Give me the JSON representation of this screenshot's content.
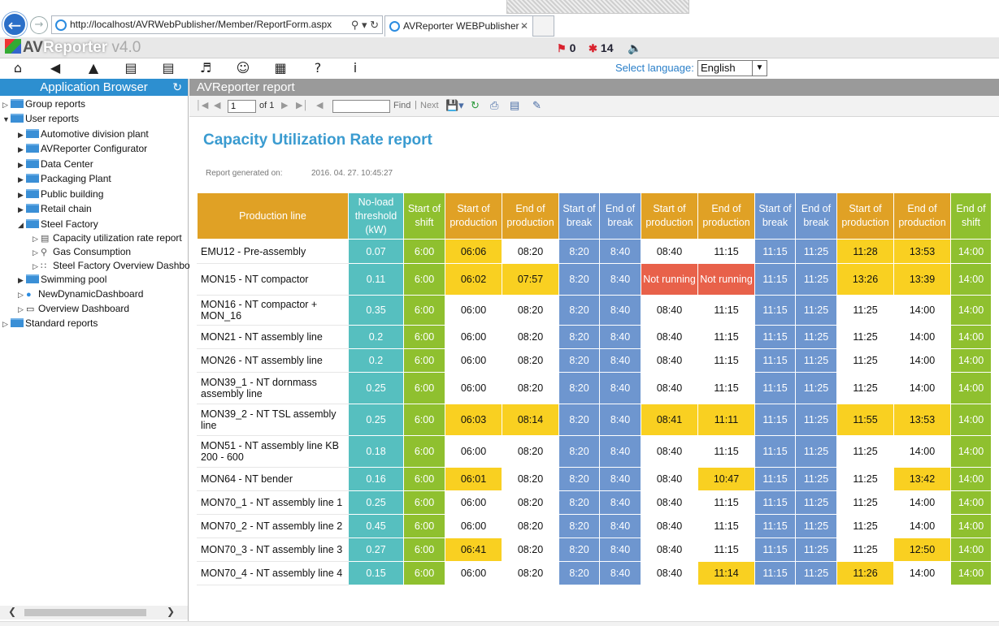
{
  "browser": {
    "url": "http://localhost/AVRWebPublisher/Member/ReportForm.aspx",
    "tab_title": "AVReporter WEBPublisher - ..."
  },
  "app": {
    "logo_av": "AV",
    "logo_reporter": "Reporter",
    "logo_version": "v4.0",
    "alerts": {
      "count1": "0",
      "count2": "14"
    },
    "language_label": "Select language:",
    "language_value": "English"
  },
  "left_panel": {
    "title": "Application Browser",
    "tree": [
      {
        "label": "Group reports"
      },
      {
        "label": "User reports"
      },
      {
        "label": "Automotive division plant"
      },
      {
        "label": "AVReporter Configurator"
      },
      {
        "label": "Data Center"
      },
      {
        "label": "Packaging Plant"
      },
      {
        "label": "Public building"
      },
      {
        "label": "Retail chain"
      },
      {
        "label": "Steel Factory"
      },
      {
        "label": "Capacity utilization rate report"
      },
      {
        "label": "Gas Consumption"
      },
      {
        "label": "Steel Factory Overview Dashboard"
      },
      {
        "label": "Swimming pool"
      },
      {
        "label": "NewDynamicDashboard"
      },
      {
        "label": "Overview Dashboard"
      },
      {
        "label": "Standard reports"
      }
    ]
  },
  "report_panel": {
    "header": "AVReporter report",
    "page_value": "1",
    "of_label": "of 1",
    "find_label": "Find",
    "next_label": "Next",
    "title": "Capacity Utilization Rate report",
    "generated_label": "Report generated on:",
    "generated_value": "2016. 04. 27. 10:45:27"
  },
  "table": {
    "headers": [
      "Production line",
      "No-load threshold (kW)",
      "Start of shift",
      "Start of production",
      "End of production",
      "Start of break",
      "End of break",
      "Start of production",
      "End of production",
      "Start of break",
      "End of break",
      "Start of production",
      "End of production",
      "End of shift"
    ],
    "header_colors": [
      "or",
      "teal",
      "green",
      "or",
      "or",
      "blue",
      "blue",
      "or",
      "or",
      "blue",
      "blue",
      "or",
      "or",
      "green"
    ],
    "rows": [
      {
        "cells": [
          "EMU12 - Pre-assembly",
          "0.07",
          "6:00",
          "06:06",
          "08:20",
          "8:20",
          "8:40",
          "08:40",
          "11:15",
          "11:15",
          "11:25",
          "11:28",
          "13:53",
          "14:00"
        ],
        "colors": [
          "white",
          "teal",
          "green",
          "yel",
          "white",
          "blue",
          "blue",
          "white",
          "white",
          "blue",
          "blue",
          "yel",
          "yel",
          "green"
        ]
      },
      {
        "cells": [
          "MON15 - NT compactor",
          "0.11",
          "6:00",
          "06:02",
          "07:57",
          "8:20",
          "8:40",
          "Not running",
          "Not running",
          "11:15",
          "11:25",
          "13:26",
          "13:39",
          "14:00"
        ],
        "colors": [
          "white",
          "teal",
          "green",
          "yel",
          "yel",
          "blue",
          "blue",
          "red",
          "red",
          "blue",
          "blue",
          "yel",
          "yel",
          "green"
        ]
      },
      {
        "cells": [
          "MON16 - NT compactor + MON_16",
          "0.35",
          "6:00",
          "06:00",
          "08:20",
          "8:20",
          "8:40",
          "08:40",
          "11:15",
          "11:15",
          "11:25",
          "11:25",
          "14:00",
          "14:00"
        ],
        "colors": [
          "white",
          "teal",
          "green",
          "white",
          "white",
          "blue",
          "blue",
          "white",
          "white",
          "blue",
          "blue",
          "white",
          "white",
          "green"
        ]
      },
      {
        "cells": [
          "MON21 - NT assembly line",
          "0.2",
          "6:00",
          "06:00",
          "08:20",
          "8:20",
          "8:40",
          "08:40",
          "11:15",
          "11:15",
          "11:25",
          "11:25",
          "14:00",
          "14:00"
        ],
        "colors": [
          "white",
          "teal",
          "green",
          "white",
          "white",
          "blue",
          "blue",
          "white",
          "white",
          "blue",
          "blue",
          "white",
          "white",
          "green"
        ]
      },
      {
        "cells": [
          "MON26 - NT assembly line",
          "0.2",
          "6:00",
          "06:00",
          "08:20",
          "8:20",
          "8:40",
          "08:40",
          "11:15",
          "11:15",
          "11:25",
          "11:25",
          "14:00",
          "14:00"
        ],
        "colors": [
          "white",
          "teal",
          "green",
          "white",
          "white",
          "blue",
          "blue",
          "white",
          "white",
          "blue",
          "blue",
          "white",
          "white",
          "green"
        ]
      },
      {
        "cells": [
          "MON39_1 - NT dornmass assembly line",
          "0.25",
          "6:00",
          "06:00",
          "08:20",
          "8:20",
          "8:40",
          "08:40",
          "11:15",
          "11:15",
          "11:25",
          "11:25",
          "14:00",
          "14:00"
        ],
        "colors": [
          "white",
          "teal",
          "green",
          "white",
          "white",
          "blue",
          "blue",
          "white",
          "white",
          "blue",
          "blue",
          "white",
          "white",
          "green"
        ]
      },
      {
        "cells": [
          "MON39_2 - NT TSL assembly line",
          "0.25",
          "6:00",
          "06:03",
          "08:14",
          "8:20",
          "8:40",
          "08:41",
          "11:11",
          "11:15",
          "11:25",
          "11:55",
          "13:53",
          "14:00"
        ],
        "colors": [
          "white",
          "teal",
          "green",
          "yel",
          "yel",
          "blue",
          "blue",
          "yel",
          "yel",
          "blue",
          "blue",
          "yel",
          "yel",
          "green"
        ]
      },
      {
        "cells": [
          "MON51 - NT assembly line KB 200 - 600",
          "0.18",
          "6:00",
          "06:00",
          "08:20",
          "8:20",
          "8:40",
          "08:40",
          "11:15",
          "11:15",
          "11:25",
          "11:25",
          "14:00",
          "14:00"
        ],
        "colors": [
          "white",
          "teal",
          "green",
          "white",
          "white",
          "blue",
          "blue",
          "white",
          "white",
          "blue",
          "blue",
          "white",
          "white",
          "green"
        ]
      },
      {
        "cells": [
          "MON64 - NT bender",
          "0.16",
          "6:00",
          "06:01",
          "08:20",
          "8:20",
          "8:40",
          "08:40",
          "10:47",
          "11:15",
          "11:25",
          "11:25",
          "13:42",
          "14:00"
        ],
        "colors": [
          "white",
          "teal",
          "green",
          "yel",
          "white",
          "blue",
          "blue",
          "white",
          "yel",
          "blue",
          "blue",
          "white",
          "yel",
          "green"
        ]
      },
      {
        "cells": [
          "MON70_1 - NT assembly line 1",
          "0.25",
          "6:00",
          "06:00",
          "08:20",
          "8:20",
          "8:40",
          "08:40",
          "11:15",
          "11:15",
          "11:25",
          "11:25",
          "14:00",
          "14:00"
        ],
        "colors": [
          "white",
          "teal",
          "green",
          "white",
          "white",
          "blue",
          "blue",
          "white",
          "white",
          "blue",
          "blue",
          "white",
          "white",
          "green"
        ]
      },
      {
        "cells": [
          "MON70_2 - NT assembly line 2",
          "0.45",
          "6:00",
          "06:00",
          "08:20",
          "8:20",
          "8:40",
          "08:40",
          "11:15",
          "11:15",
          "11:25",
          "11:25",
          "14:00",
          "14:00"
        ],
        "colors": [
          "white",
          "teal",
          "green",
          "white",
          "white",
          "blue",
          "blue",
          "white",
          "white",
          "blue",
          "blue",
          "white",
          "white",
          "green"
        ]
      },
      {
        "cells": [
          "MON70_3 - NT assembly line 3",
          "0.27",
          "6:00",
          "06:41",
          "08:20",
          "8:20",
          "8:40",
          "08:40",
          "11:15",
          "11:15",
          "11:25",
          "11:25",
          "12:50",
          "14:00"
        ],
        "colors": [
          "white",
          "teal",
          "green",
          "yel",
          "white",
          "blue",
          "blue",
          "white",
          "white",
          "blue",
          "blue",
          "white",
          "yel",
          "green"
        ]
      },
      {
        "cells": [
          "MON70_4 - NT assembly line 4",
          "0.15",
          "6:00",
          "06:00",
          "08:20",
          "8:20",
          "8:40",
          "08:40",
          "11:14",
          "11:15",
          "11:25",
          "11:26",
          "14:00",
          "14:00"
        ],
        "colors": [
          "white",
          "teal",
          "green",
          "white",
          "white",
          "blue",
          "blue",
          "white",
          "yel",
          "blue",
          "blue",
          "yel",
          "white",
          "green"
        ]
      }
    ]
  }
}
